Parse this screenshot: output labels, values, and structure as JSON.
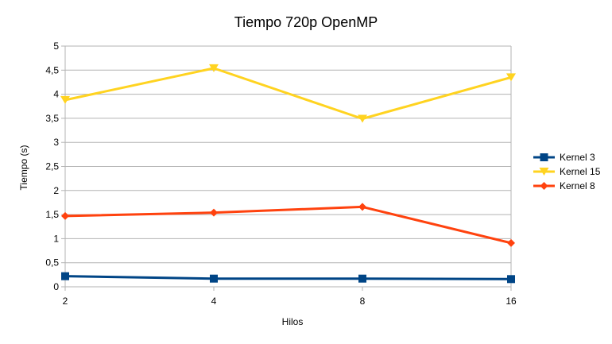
{
  "chart_data": {
    "type": "line",
    "title": "Tiempo 720p OpenMP",
    "xlabel": "Hilos",
    "ylabel": "Tiempo (s)",
    "categories": [
      "2",
      "4",
      "8",
      "16"
    ],
    "ylim": [
      0,
      5
    ],
    "yticks": [
      "0",
      "0,5",
      "1",
      "1,5",
      "2",
      "2,5",
      "3",
      "3,5",
      "4",
      "4,5",
      "5"
    ],
    "grid": true,
    "legend_position": "right",
    "series": [
      {
        "name": "Kernel 3",
        "values": [
          0.22,
          0.17,
          0.17,
          0.16
        ],
        "color": "#004586",
        "marker": "square"
      },
      {
        "name": "Kernel 15",
        "values": [
          3.88,
          4.54,
          3.49,
          4.35
        ],
        "color": "#ffd320",
        "marker": "triangle-down"
      },
      {
        "name": "Kernel 8",
        "values": [
          1.47,
          1.54,
          1.66,
          0.91
        ],
        "color": "#ff420e",
        "marker": "diamond"
      }
    ]
  }
}
